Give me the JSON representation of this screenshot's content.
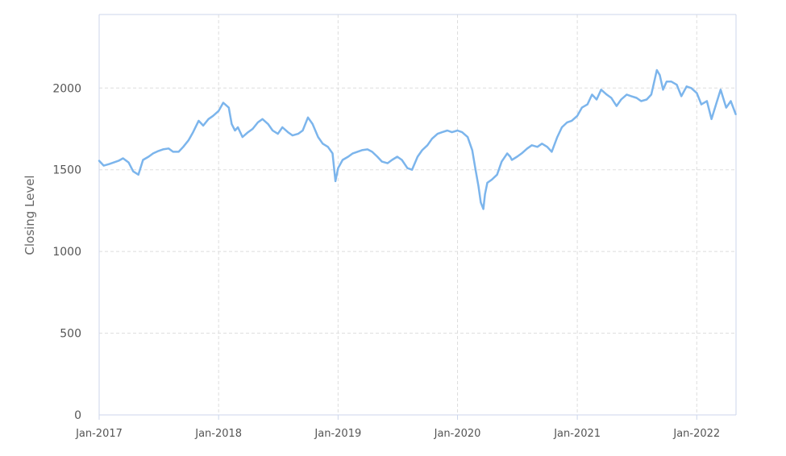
{
  "chart_data": {
    "type": "line",
    "title": "",
    "xlabel": "",
    "ylabel": "Closing Level",
    "ylim": [
      0,
      2450
    ],
    "xlim": [
      "2017-01-01",
      "2022-05-01"
    ],
    "y_ticks": [
      0,
      500,
      1000,
      1500,
      2000
    ],
    "y_tick_labels": [
      "0",
      "500",
      "1000",
      "1500",
      "2000"
    ],
    "x_ticks": [
      "2017-01-01",
      "2018-01-01",
      "2019-01-01",
      "2020-01-01",
      "2021-01-01",
      "2022-01-01"
    ],
    "x_tick_labels": [
      "Jan-2017",
      "Jan-2018",
      "Jan-2019",
      "Jan-2020",
      "Jan-2021",
      "Jan-2022"
    ],
    "grid": true,
    "legend": "none",
    "colors": {
      "line": "#7cb5ec",
      "grid": "#dddddd",
      "axis": "#ccd6eb",
      "tick_text": "#555555"
    },
    "series": [
      {
        "x": [
          "2017-01-01",
          "2017-01-15",
          "2017-02-01",
          "2017-02-15",
          "2017-03-01",
          "2017-03-15",
          "2017-04-01",
          "2017-04-15",
          "2017-05-01",
          "2017-05-15",
          "2017-06-01",
          "2017-06-15",
          "2017-07-01",
          "2017-07-15",
          "2017-08-01",
          "2017-08-15",
          "2017-09-01",
          "2017-09-15",
          "2017-10-01",
          "2017-10-15",
          "2017-11-01",
          "2017-11-15",
          "2017-12-01",
          "2017-12-15",
          "2018-01-01",
          "2018-01-15",
          "2018-02-01",
          "2018-02-10",
          "2018-02-20",
          "2018-03-01",
          "2018-03-15",
          "2018-04-01",
          "2018-04-15",
          "2018-05-01",
          "2018-05-15",
          "2018-06-01",
          "2018-06-15",
          "2018-07-01",
          "2018-07-15",
          "2018-08-01",
          "2018-08-15",
          "2018-09-01",
          "2018-09-15",
          "2018-10-01",
          "2018-10-15",
          "2018-11-01",
          "2018-11-15",
          "2018-12-01",
          "2018-12-15",
          "2018-12-24",
          "2019-01-01",
          "2019-01-15",
          "2019-02-01",
          "2019-02-15",
          "2019-03-01",
          "2019-03-15",
          "2019-04-01",
          "2019-04-15",
          "2019-05-01",
          "2019-05-15",
          "2019-06-01",
          "2019-06-15",
          "2019-07-01",
          "2019-07-15",
          "2019-08-01",
          "2019-08-15",
          "2019-09-01",
          "2019-09-15",
          "2019-10-01",
          "2019-10-15",
          "2019-11-01",
          "2019-11-15",
          "2019-12-01",
          "2019-12-15",
          "2020-01-01",
          "2020-01-15",
          "2020-02-01",
          "2020-02-15",
          "2020-02-25",
          "2020-03-05",
          "2020-03-12",
          "2020-03-20",
          "2020-03-25",
          "2020-04-01",
          "2020-04-15",
          "2020-05-01",
          "2020-05-15",
          "2020-06-01",
          "2020-06-10",
          "2020-06-15",
          "2020-07-01",
          "2020-07-15",
          "2020-08-01",
          "2020-08-15",
          "2020-09-01",
          "2020-09-15",
          "2020-10-01",
          "2020-10-15",
          "2020-11-01",
          "2020-11-15",
          "2020-12-01",
          "2020-12-15",
          "2021-01-01",
          "2021-01-15",
          "2021-02-01",
          "2021-02-15",
          "2021-03-01",
          "2021-03-15",
          "2021-04-01",
          "2021-04-15",
          "2021-05-01",
          "2021-05-15",
          "2021-06-01",
          "2021-06-15",
          "2021-07-01",
          "2021-07-15",
          "2021-08-01",
          "2021-08-15",
          "2021-09-01",
          "2021-09-10",
          "2021-09-20",
          "2021-10-01",
          "2021-10-15",
          "2021-11-01",
          "2021-11-15",
          "2021-12-01",
          "2021-12-15",
          "2022-01-01",
          "2022-01-15",
          "2022-02-01",
          "2022-02-15",
          "2022-03-01",
          "2022-03-15",
          "2022-04-01",
          "2022-04-15",
          "2022-04-30"
        ],
        "values": [
          1555,
          1525,
          1535,
          1545,
          1555,
          1570,
          1545,
          1490,
          1470,
          1560,
          1580,
          1600,
          1615,
          1625,
          1630,
          1610,
          1610,
          1640,
          1680,
          1730,
          1800,
          1770,
          1810,
          1830,
          1860,
          1910,
          1880,
          1780,
          1740,
          1760,
          1700,
          1730,
          1750,
          1790,
          1810,
          1780,
          1740,
          1720,
          1760,
          1730,
          1710,
          1720,
          1740,
          1820,
          1780,
          1700,
          1660,
          1640,
          1600,
          1430,
          1510,
          1560,
          1580,
          1600,
          1610,
          1620,
          1625,
          1610,
          1580,
          1550,
          1540,
          1560,
          1580,
          1560,
          1510,
          1500,
          1580,
          1620,
          1650,
          1690,
          1720,
          1730,
          1740,
          1730,
          1740,
          1730,
          1700,
          1620,
          1500,
          1400,
          1300,
          1260,
          1350,
          1420,
          1440,
          1470,
          1550,
          1600,
          1580,
          1560,
          1580,
          1600,
          1630,
          1650,
          1640,
          1660,
          1640,
          1610,
          1700,
          1760,
          1790,
          1800,
          1830,
          1880,
          1900,
          1960,
          1930,
          1990,
          1960,
          1940,
          1890,
          1930,
          1960,
          1950,
          1940,
          1920,
          1930,
          1960,
          2110,
          2080,
          1990,
          2040,
          2040,
          2020,
          1950,
          2010,
          2000,
          1970,
          1900,
          1920,
          1810,
          1900,
          1990,
          1880,
          1920,
          1840
        ]
      }
    ]
  }
}
